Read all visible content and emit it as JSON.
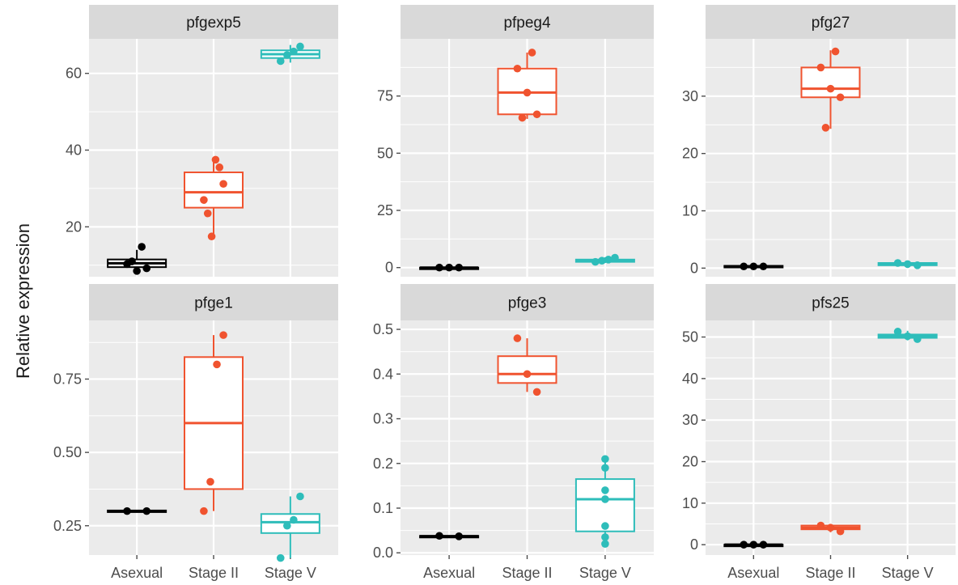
{
  "chart_data": {
    "type": "boxplot",
    "ylabel": "Relative expression",
    "categories": [
      "Asexual",
      "Stage II",
      "Stage V"
    ],
    "colors": {
      "Asexual": "#000000",
      "Stage II": "#F0532F",
      "Stage V": "#2EBDBA"
    },
    "panel_background": "#EBEBEB",
    "strip_background": "#D9D9D9",
    "grid": true,
    "legend": "none",
    "panels": [
      {
        "title": "pfgexp5",
        "ylim": [
          7,
          69
        ],
        "yticks": [
          20,
          40,
          60
        ],
        "ytick_labels": [
          "20",
          "40",
          "60"
        ],
        "groups": [
          {
            "category": "Asexual",
            "q1": 9.5,
            "median": 10.5,
            "q3": 11.5,
            "whisker_low": 8.5,
            "whisker_high": 14,
            "points": [
              14.8,
              10.3,
              8.5,
              9.2,
              11
            ]
          },
          {
            "category": "Stage II",
            "q1": 25,
            "median": 29,
            "q3": 34.2,
            "whisker_low": 17.2,
            "whisker_high": 38,
            "points": [
              37.5,
              35.5,
              31.2,
              27,
              23.5,
              17.5
            ]
          },
          {
            "category": "Stage V",
            "q1": 64,
            "median": 65,
            "q3": 66,
            "whisker_low": 62.8,
            "whisker_high": 67.4,
            "points": [
              67,
              65.7,
              64.8,
              63.2
            ]
          }
        ]
      },
      {
        "title": "pfpeg4",
        "ylim": [
          -4,
          100
        ],
        "yticks": [
          0,
          25,
          50,
          75
        ],
        "ytick_labels": [
          "0",
          "25",
          "50",
          "75"
        ],
        "groups": [
          {
            "category": "Asexual",
            "q1": 0,
            "median": 0,
            "q3": 0,
            "whisker_low": 0,
            "whisker_high": 0,
            "points": [
              0,
              0,
              0
            ]
          },
          {
            "category": "Stage II",
            "q1": 67,
            "median": 76.5,
            "q3": 87,
            "whisker_low": 65,
            "whisker_high": 94,
            "points": [
              94,
              87,
              76.5,
              67,
              65.5
            ]
          },
          {
            "category": "Stage V",
            "q1": 2.5,
            "median": 3,
            "q3": 3.5,
            "whisker_low": 2,
            "whisker_high": 4.5,
            "points": [
              4.3,
              3.5,
              3,
              2.5
            ]
          }
        ]
      },
      {
        "title": "pfg27",
        "ylim": [
          -1.5,
          40
        ],
        "yticks": [
          0,
          10,
          20,
          30
        ],
        "ytick_labels": [
          "0",
          "10",
          "20",
          "30"
        ],
        "groups": [
          {
            "category": "Asexual",
            "q1": 0.2,
            "median": 0.3,
            "q3": 0.4,
            "whisker_low": 0.1,
            "whisker_high": 0.4,
            "points": [
              0.3,
              0.3,
              0.3
            ]
          },
          {
            "category": "Stage II",
            "q1": 29.8,
            "median": 31.3,
            "q3": 35,
            "whisker_low": 24.3,
            "whisker_high": 38,
            "points": [
              37.8,
              35,
              31.3,
              29.8,
              24.5
            ]
          },
          {
            "category": "Stage V",
            "q1": 0.5,
            "median": 0.7,
            "q3": 0.9,
            "whisker_low": 0.3,
            "whisker_high": 1.1,
            "points": [
              0.9,
              0.7,
              0.5
            ]
          }
        ]
      },
      {
        "title": "pfge1",
        "ylim": [
          0.15,
          0.95
        ],
        "yticks": [
          0.25,
          0.5,
          0.75
        ],
        "ytick_labels": [
          "0.25",
          "0.50",
          "0.75"
        ],
        "groups": [
          {
            "category": "Asexual",
            "q1": 0.298,
            "median": 0.3,
            "q3": 0.302,
            "whisker_low": 0.297,
            "whisker_high": 0.303,
            "points": [
              0.3,
              0.3
            ]
          },
          {
            "category": "Stage II",
            "q1": 0.375,
            "median": 0.6,
            "q3": 0.825,
            "whisker_low": 0.3,
            "whisker_high": 0.9,
            "points": [
              0.9,
              0.8,
              0.4,
              0.3
            ]
          },
          {
            "category": "Stage V",
            "q1": 0.225,
            "median": 0.262,
            "q3": 0.29,
            "whisker_low": 0.14,
            "whisker_high": 0.35,
            "points": [
              0.35,
              0.27,
              0.25,
              0.14
            ]
          }
        ]
      },
      {
        "title": "pfge3",
        "ylim": [
          -0.005,
          0.52
        ],
        "yticks": [
          0,
          0.1,
          0.2,
          0.3,
          0.4,
          0.5
        ],
        "ytick_labels": [
          "0.0",
          "0.1",
          "0.2",
          "0.3",
          "0.4",
          "0.5"
        ],
        "groups": [
          {
            "category": "Asexual",
            "q1": 0.036,
            "median": 0.037,
            "q3": 0.038,
            "whisker_low": 0.035,
            "whisker_high": 0.039,
            "points": [
              0.037,
              0.038
            ]
          },
          {
            "category": "Stage II",
            "q1": 0.38,
            "median": 0.4,
            "q3": 0.44,
            "whisker_low": 0.36,
            "whisker_high": 0.48,
            "points": [
              0.48,
              0.4,
              0.36
            ]
          },
          {
            "category": "Stage V",
            "q1": 0.048,
            "median": 0.12,
            "q3": 0.165,
            "whisker_low": 0.02,
            "whisker_high": 0.21,
            "points": [
              0.21,
              0.19,
              0.14,
              0.12,
              0.06,
              0.035,
              0.02
            ]
          }
        ]
      },
      {
        "title": "pfs25",
        "ylim": [
          -2.5,
          54
        ],
        "yticks": [
          0,
          10,
          20,
          30,
          40,
          50
        ],
        "ytick_labels": [
          "0",
          "10",
          "20",
          "30",
          "40",
          "50"
        ],
        "groups": [
          {
            "category": "Asexual",
            "q1": 0,
            "median": 0,
            "q3": 0,
            "whisker_low": 0,
            "whisker_high": 0,
            "points": [
              0,
              0,
              0
            ]
          },
          {
            "category": "Stage II",
            "q1": 3.7,
            "median": 4.1,
            "q3": 4.6,
            "whisker_low": 3,
            "whisker_high": 4.8,
            "points": [
              4.6,
              4.1,
              3.2
            ]
          },
          {
            "category": "Stage V",
            "q1": 49.8,
            "median": 50.2,
            "q3": 50.6,
            "whisker_low": 49.2,
            "whisker_high": 51.5,
            "points": [
              51.3,
              50.2,
              49.5
            ]
          }
        ]
      }
    ]
  }
}
